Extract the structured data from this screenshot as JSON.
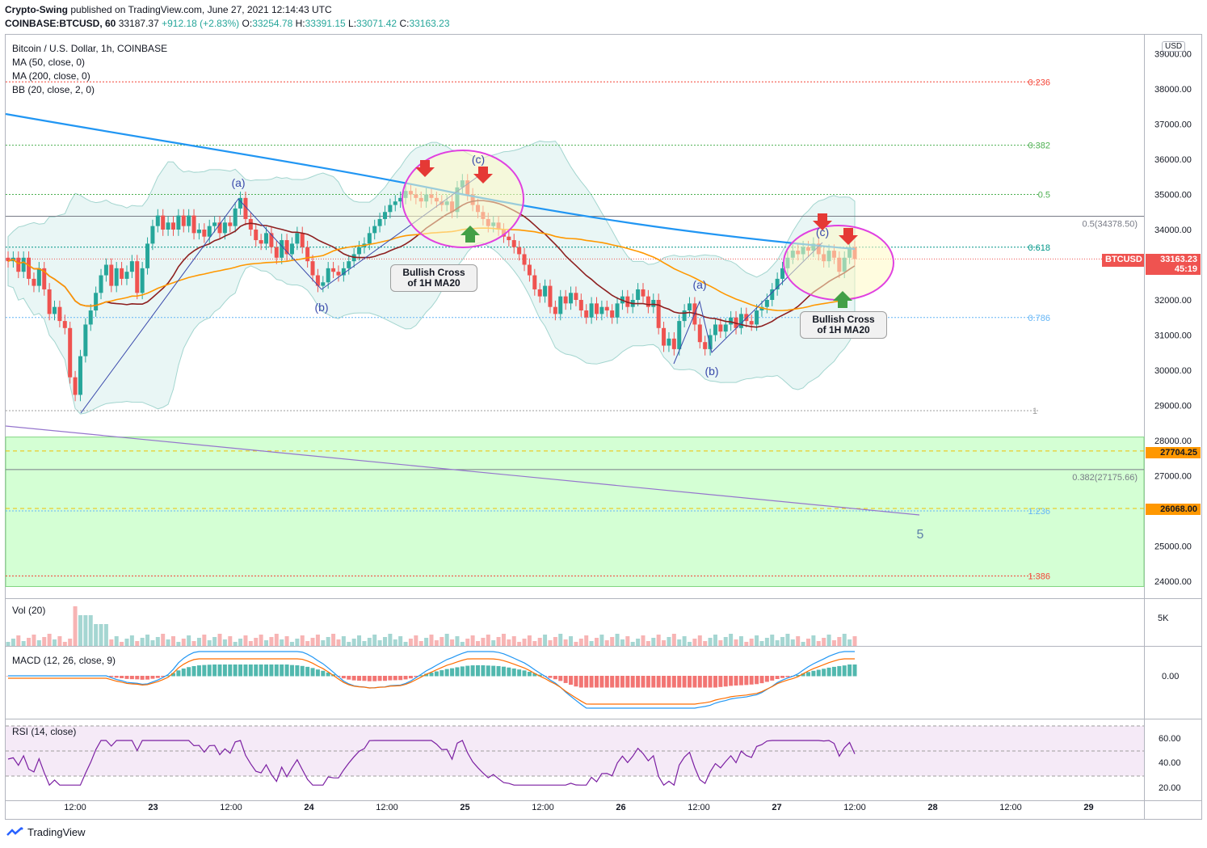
{
  "header": {
    "author": "Crypto-Swing",
    "published_text": "published on TradingView.com, June 27, 2021 12:14:43 UTC",
    "symbol_line": "COINBASE:BTCUSD, 60",
    "last": "33187.37",
    "change": "+912.18 (+2.83%)",
    "o_label": "O:",
    "o_value": "33254.78",
    "h_label": "H:",
    "h_value": "33391.15",
    "l_label": "L:",
    "l_value": "33071.42",
    "c_label": "C:",
    "c_value": "33163.23"
  },
  "legend": {
    "title": "Bitcoin / U.S. Dollar, 1h, COINBASE",
    "ma50": "MA (50, close, 0)",
    "ma200": "MA (200, close, 0)",
    "bb": "BB (20, close, 2, 0)"
  },
  "currency": "USD",
  "panes": {
    "vol": "Vol (20)",
    "macd": "MACD (12, 26, close, 9)",
    "rsi": "RSI (14, close)"
  },
  "footer": {
    "brand": "TradingView"
  },
  "colors": {
    "up": "#26a69a",
    "down": "#ef5350",
    "ma200": "#2196f3",
    "ma50": "#ff9800",
    "ma20": "#8d1f1f",
    "bb": "#a3d5cf",
    "fib_red": "#f44336",
    "fib_green": "#4caf50",
    "fib_teal": "#009688",
    "fib_blue": "#64b5f6",
    "target_zone": "#ccffcc",
    "circle": "#e040e0"
  },
  "annotations": {
    "callout1": "Bullish Cross\nof 1H MA20",
    "callout2": "Bullish Cross\nof 1H MA20",
    "wave5": "5",
    "wave_a1": "(a)",
    "wave_b1": "(b)",
    "wave_c1": "(c)",
    "wave_a2": "(a)",
    "wave_b2": "(b)",
    "wave_c2": "(c)"
  },
  "chart_data": {
    "type": "candlestick",
    "title": "Bitcoin / U.S. Dollar, 1h, COINBASE",
    "price_axis": {
      "ylim": [
        23500,
        39800
      ],
      "ticks": [
        "38000.00",
        "37000.00",
        "36000.00",
        "35000.00",
        "34000.00",
        "33000.00",
        "32000.00",
        "31000.00",
        "30000.00",
        "29000.00",
        "28000.00",
        "27000.00",
        "26000.00",
        "25000.00",
        "24000.00"
      ],
      "ticks_top_cut": "39000.00"
    },
    "time_axis": {
      "labels": [
        "12:00",
        "23",
        "12:00",
        "24",
        "12:00",
        "25",
        "12:00",
        "26",
        "12:00",
        "27",
        "12:00",
        "28",
        "12:00",
        "29"
      ]
    },
    "current_price": "33163.23",
    "countdown": "45:19",
    "symbol_tag": "BTCUSD",
    "price_tags": [
      {
        "value": "27704.25",
        "price": 27704.25
      },
      {
        "value": "26068.00",
        "price": 26068
      }
    ],
    "fib_levels": [
      {
        "label": "0.236",
        "price": 38200,
        "color": "#f44336"
      },
      {
        "label": "0.382",
        "price": 36400,
        "color": "#4caf50"
      },
      {
        "label": "0.5",
        "price": 35000,
        "color": "#4caf50"
      },
      {
        "label": "0.618",
        "price": 33500,
        "color": "#009688"
      },
      {
        "label": "0.786",
        "price": 31500,
        "color": "#64b5f6"
      },
      {
        "label": "1",
        "price": 28850,
        "color": "#9e9e9e"
      },
      {
        "label": "1.236",
        "price": 26000,
        "color": "#64b5f6"
      },
      {
        "label": "1.386",
        "price": 24150,
        "color": "#f44336"
      }
    ],
    "retrace_lines": [
      {
        "label": "0.5(34378.50)",
        "price": 34378.5
      },
      {
        "label": "0.382(27175.66)",
        "price": 27175.66
      }
    ],
    "target_zone": [
      23850,
      28100
    ],
    "candles": [
      33100,
      33200,
      32800,
      33200,
      32600,
      32400,
      32900,
      32300,
      31600,
      31800,
      31400,
      31200,
      29800,
      29300,
      30400,
      31300,
      31700,
      32200,
      32700,
      33000,
      32400,
      32900,
      32600,
      32800,
      33100,
      32200,
      32900,
      33600,
      34100,
      34400,
      34000,
      34200,
      34000,
      34400,
      34100,
      34400,
      33900,
      34000,
      33800,
      34100,
      34200,
      33900,
      34200,
      34100,
      34600,
      34900,
      34300,
      34000,
      33700,
      33600,
      33900,
      33500,
      33200,
      33700,
      33300,
      33600,
      33900,
      33500,
      33100,
      32700,
      32400,
      32500,
      32900,
      32800,
      32700,
      32900,
      33100,
      33300,
      33500,
      33600,
      33900,
      34100,
      34300,
      34500,
      34700,
      34800,
      34900,
      35100,
      35000,
      34900,
      34800,
      35000,
      34900,
      34800,
      34700,
      34800,
      34500,
      35200,
      35400,
      35000,
      34700,
      34500,
      34300,
      34100,
      34200,
      34000,
      33800,
      33700,
      33500,
      33300,
      33000,
      32700,
      32300,
      32100,
      32400,
      31800,
      31600,
      32100,
      31900,
      32200,
      32000,
      31700,
      31500,
      31900,
      31600,
      31800,
      31700,
      31500,
      31900,
      32100,
      31800,
      32000,
      32300,
      32100,
      31800,
      32000,
      31200,
      30700,
      30900,
      30600,
      31400,
      31700,
      31900,
      31300,
      30800,
      30600,
      31000,
      31300,
      31100,
      31300,
      31500,
      31200,
      31600,
      31400,
      31300,
      31700,
      31800,
      32000,
      32300,
      32600,
      32900,
      33200,
      33400,
      33300,
      33500,
      33400,
      33600,
      33300,
      33100,
      33400,
      33200,
      32800,
      33200,
      33500,
      33163
    ]
  }
}
